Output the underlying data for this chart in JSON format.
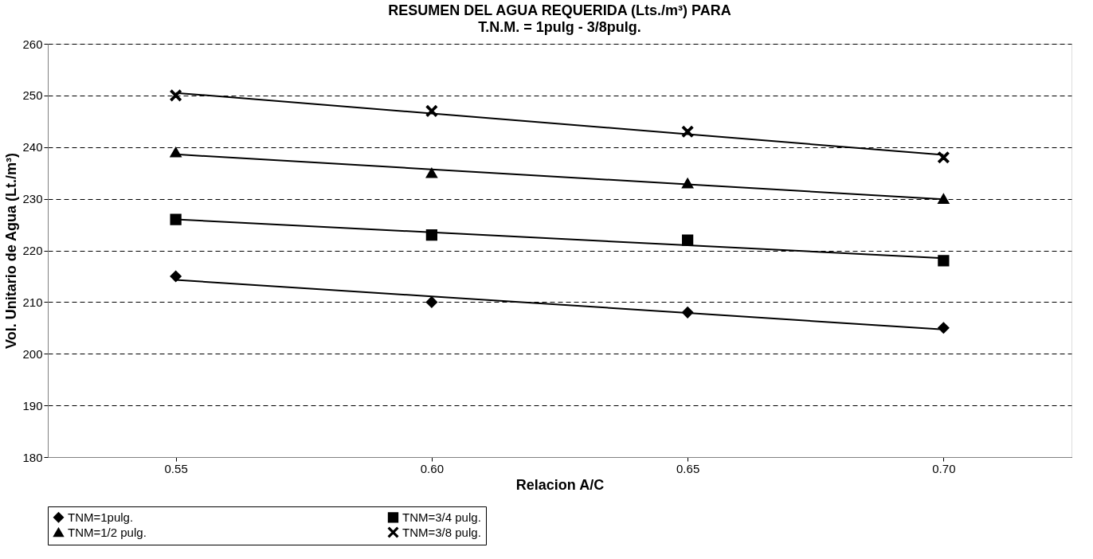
{
  "chart_data": {
    "type": "scatter",
    "title": "RESUMEN DEL AGUA REQUERIDA (Lts./m³) PARA",
    "subtitle": "T.N.M. = 1pulg - 3/8pulg.",
    "xlabel": "Relacion A/C",
    "ylabel": "Vol. Unitario de Agua (Lt./m³)",
    "x": [
      0.55,
      0.6,
      0.65,
      0.7
    ],
    "xlim": [
      0.525,
      0.725
    ],
    "xticks": [
      {
        "value": 0.55,
        "label": "0.55"
      },
      {
        "value": 0.6,
        "label": "0.60"
      },
      {
        "value": 0.65,
        "label": "0.65"
      },
      {
        "value": 0.7,
        "label": "0.70"
      }
    ],
    "ylim": [
      180,
      260
    ],
    "yticks": [
      180,
      190,
      200,
      210,
      220,
      230,
      240,
      250,
      260
    ],
    "grid": "y",
    "legend": "bottom",
    "series": [
      {
        "name": "TNM=1pulg.",
        "color": "#000000",
        "marker": "diamond",
        "values": [
          215,
          210,
          208,
          205
        ]
      },
      {
        "name": "TNM=3/4 pulg.",
        "color": "#000000",
        "marker": "square",
        "values": [
          226,
          223,
          222,
          218
        ]
      },
      {
        "name": "TNM=1/2 pulg.",
        "color": "#000000",
        "marker": "triangle",
        "values": [
          239,
          235,
          233,
          230
        ]
      },
      {
        "name": "TNM=3/8 pulg.",
        "color": "#000000",
        "marker": "cross",
        "values": [
          250,
          247,
          243,
          238
        ]
      },
      {
        "type": "line",
        "color": "#000000",
        "values": [
          214.3,
          211.1,
          207.9,
          204.7
        ]
      },
      {
        "type": "line",
        "color": "#000000",
        "values": [
          226.0,
          223.5,
          221.0,
          218.5
        ]
      },
      {
        "type": "line",
        "color": "#000000",
        "values": [
          238.6,
          235.7,
          232.8,
          229.9
        ]
      },
      {
        "type": "line",
        "color": "#000000",
        "values": [
          250.5,
          246.5,
          242.5,
          238.5
        ]
      }
    ]
  }
}
